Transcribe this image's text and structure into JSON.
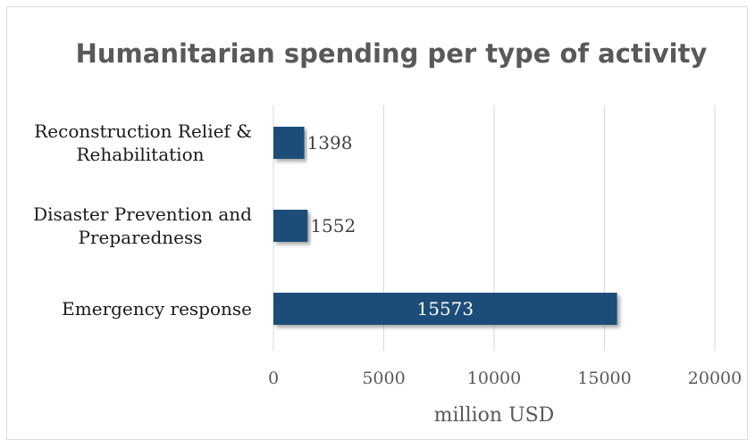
{
  "chart_data": {
    "type": "bar",
    "orientation": "horizontal",
    "title": "Humanitarian spending per type of activity",
    "xlabel": "million USD",
    "ylabel": "",
    "categories": [
      [
        "Reconstruction Relief &",
        "Rehabilitation"
      ],
      [
        "Disaster Prevention and",
        "Preparedness"
      ],
      [
        "Emergency response"
      ]
    ],
    "values": [
      1398,
      1552,
      15573
    ],
    "data_labels": [
      "1398",
      "1552",
      "15573"
    ],
    "xlim": [
      0,
      20000
    ],
    "xticks": [
      0,
      5000,
      10000,
      15000,
      20000
    ],
    "xtick_labels": [
      "0",
      "5000",
      "10000",
      "15000",
      "20000"
    ],
    "grid": "vertical",
    "legend": "none",
    "colors": {
      "bar": "#1f4e79",
      "grid": "#d9d9d9",
      "frame": "#d9dde3",
      "label_inside": "#ffffff",
      "label_outside": "#404040"
    }
  }
}
